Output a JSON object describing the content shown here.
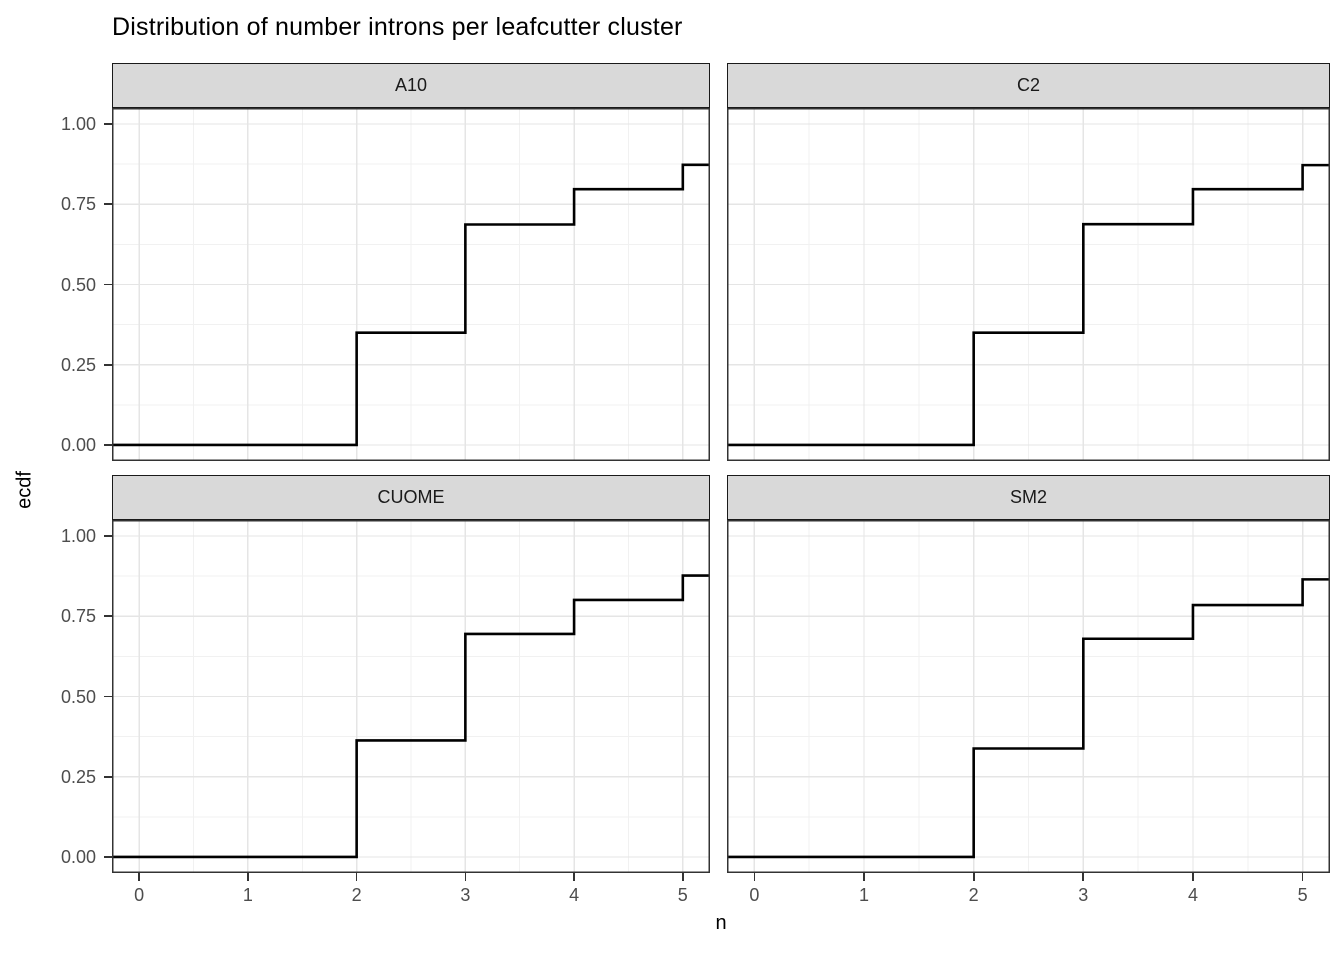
{
  "page": {
    "background": "#ffffff"
  },
  "chart_data": {
    "type": "line",
    "variant": "ecdf-step-faceted",
    "title": "Distribution of number introns per leafcutter cluster",
    "xlabel": "n",
    "ylabel": "ecdf",
    "xlim": [
      -0.25,
      5.25
    ],
    "ylim": [
      -0.05,
      1.05
    ],
    "x_ticks": [
      0,
      1,
      2,
      3,
      4,
      5
    ],
    "x_tick_labels": [
      "0",
      "1",
      "2",
      "3",
      "4",
      "5"
    ],
    "y_ticks": [
      0,
      0.25,
      0.5,
      0.75,
      1
    ],
    "y_tick_labels": [
      "0.00",
      "0.25",
      "0.50",
      "0.75",
      "1.00"
    ],
    "x_minor_breaks": [
      0.5,
      1.5,
      2.5,
      3.5,
      4.5
    ],
    "y_minor_breaks": [
      0.125,
      0.375,
      0.625,
      0.875
    ],
    "grid": {
      "major": true,
      "minor": true
    },
    "legend": "none",
    "facets": [
      {
        "label": "A10",
        "start_y": 0,
        "steps": [
          {
            "x": 2,
            "ecdf": 0.35
          },
          {
            "x": 3,
            "ecdf": 0.687
          },
          {
            "x": 4,
            "ecdf": 0.797
          },
          {
            "x": 5,
            "ecdf": 0.873
          }
        ]
      },
      {
        "label": "C2",
        "start_y": 0,
        "steps": [
          {
            "x": 2,
            "ecdf": 0.35
          },
          {
            "x": 3,
            "ecdf": 0.688
          },
          {
            "x": 4,
            "ecdf": 0.797
          },
          {
            "x": 5,
            "ecdf": 0.872
          }
        ]
      },
      {
        "label": "CUOME",
        "start_y": 0,
        "steps": [
          {
            "x": 2,
            "ecdf": 0.363
          },
          {
            "x": 3,
            "ecdf": 0.695
          },
          {
            "x": 4,
            "ecdf": 0.801
          },
          {
            "x": 5,
            "ecdf": 0.877
          }
        ]
      },
      {
        "label": "SM2",
        "start_y": 0,
        "steps": [
          {
            "x": 2,
            "ecdf": 0.338
          },
          {
            "x": 3,
            "ecdf": 0.68
          },
          {
            "x": 4,
            "ecdf": 0.785
          },
          {
            "x": 5,
            "ecdf": 0.865
          }
        ]
      }
    ],
    "colors": {
      "line": "#000000",
      "panel_background": "#ffffff",
      "panel_border": "#333333",
      "strip_background": "#d9d9d9",
      "strip_border": "#1a1a1a",
      "grid_major": "#e5e5e5",
      "grid_minor": "#f1f1f1",
      "tick_mark": "#333333",
      "tick_label": "#4d4d4d",
      "title_text": "#000000"
    }
  }
}
